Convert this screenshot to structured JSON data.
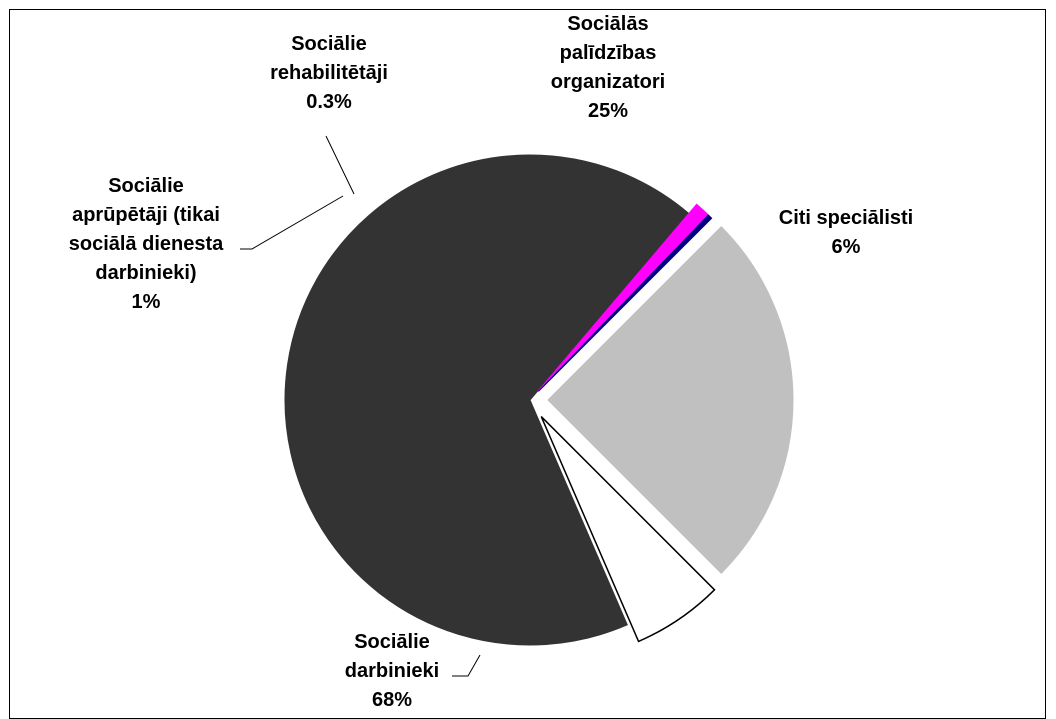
{
  "chart_data": {
    "type": "pie",
    "title": "",
    "slices": [
      {
        "label_lines": [
          "Sociālās",
          "palīdzības",
          "organizatori"
        ],
        "percent_label": "25%",
        "value": 25,
        "color": "#c0c0c0"
      },
      {
        "label_lines": [
          "Citi speciālisti"
        ],
        "percent_label": "6%",
        "value": 6,
        "color": "#ffffff"
      },
      {
        "label_lines": [
          "Sociālie",
          "darbinieki"
        ],
        "percent_label": "68%",
        "value": 67.7,
        "color": "#333333"
      },
      {
        "label_lines": [
          "Sociālie",
          "aprūpētāji (tikai",
          "sociālā dienesta",
          "darbinieki)"
        ],
        "percent_label": "1%",
        "value": 1,
        "color": "#ff00ff"
      },
      {
        "label_lines": [
          "Sociālie",
          "rehabilitētāji"
        ],
        "percent_label": "0.3%",
        "value": 0.3,
        "color": "#000080"
      }
    ],
    "legend": "none",
    "exploded": true
  }
}
